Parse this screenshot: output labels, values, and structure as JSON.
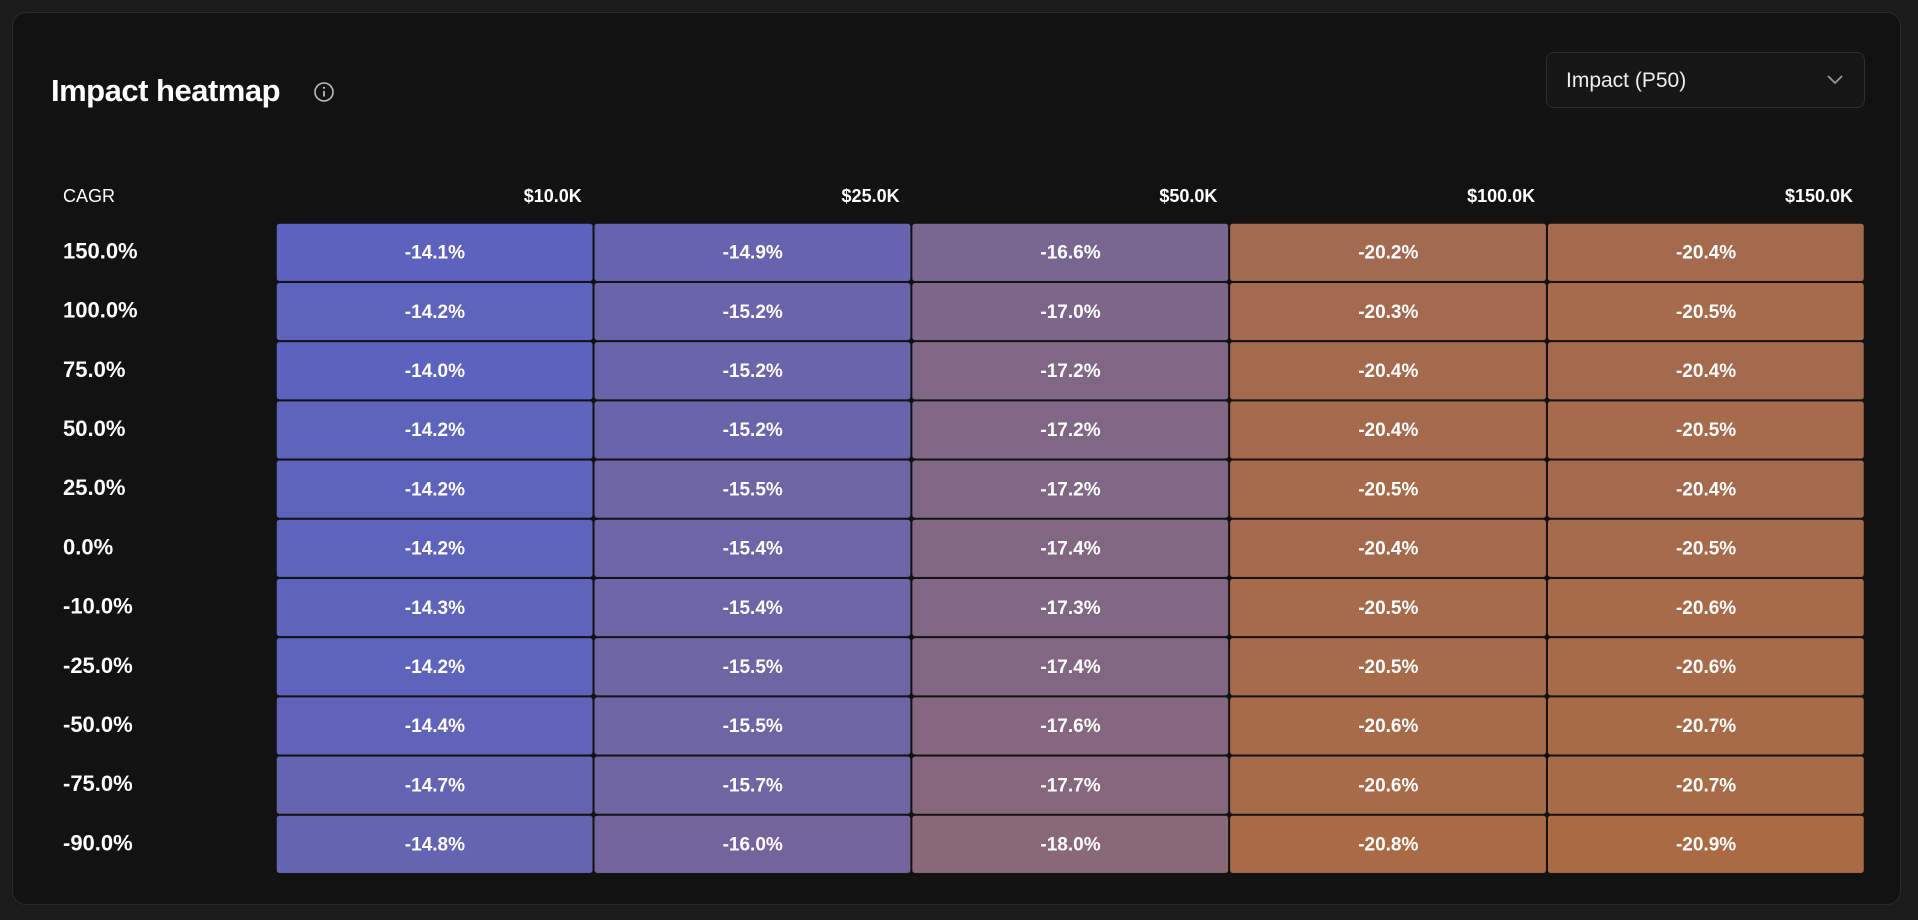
{
  "header": {
    "dropdown": "Impact (P50)"
  },
  "chart_data": {
    "type": "heatmap",
    "title": "Impact heatmap",
    "y_label": "CAGR",
    "x_categories": [
      "$10.0K",
      "$25.0K",
      "$50.0K",
      "$100.0K",
      "$150.0K"
    ],
    "y_categories": [
      "150.0%",
      "100.0%",
      "75.0%",
      "50.0%",
      "25.0%",
      "0.0%",
      "-10.0%",
      "-25.0%",
      "-50.0%",
      "-75.0%",
      "-90.0%"
    ],
    "values": [
      [
        -14.1,
        -14.9,
        -16.6,
        -20.2,
        -20.4
      ],
      [
        -14.2,
        -15.2,
        -17.0,
        -20.3,
        -20.5
      ],
      [
        -14.0,
        -15.2,
        -17.2,
        -20.4,
        -20.4
      ],
      [
        -14.2,
        -15.2,
        -17.2,
        -20.4,
        -20.5
      ],
      [
        -14.2,
        -15.5,
        -17.2,
        -20.5,
        -20.4
      ],
      [
        -14.2,
        -15.4,
        -17.4,
        -20.4,
        -20.5
      ],
      [
        -14.3,
        -15.4,
        -17.3,
        -20.5,
        -20.6
      ],
      [
        -14.2,
        -15.5,
        -17.4,
        -20.5,
        -20.6
      ],
      [
        -14.4,
        -15.5,
        -17.6,
        -20.6,
        -20.7
      ],
      [
        -14.7,
        -15.7,
        -17.7,
        -20.6,
        -20.7
      ],
      [
        -14.8,
        -16.0,
        -18.0,
        -20.8,
        -20.9
      ]
    ],
    "value_labels": [
      [
        "-14.1%",
        "-14.9%",
        "-16.6%",
        "-20.2%",
        "-20.4%"
      ],
      [
        "-14.2%",
        "-15.2%",
        "-17.0%",
        "-20.3%",
        "-20.5%"
      ],
      [
        "-14.0%",
        "-15.2%",
        "-17.2%",
        "-20.4%",
        "-20.4%"
      ],
      [
        "-14.2%",
        "-15.2%",
        "-17.2%",
        "-20.4%",
        "-20.5%"
      ],
      [
        "-14.2%",
        "-15.5%",
        "-17.2%",
        "-20.5%",
        "-20.4%"
      ],
      [
        "-14.2%",
        "-15.4%",
        "-17.4%",
        "-20.4%",
        "-20.5%"
      ],
      [
        "-14.3%",
        "-15.4%",
        "-17.3%",
        "-20.5%",
        "-20.6%"
      ],
      [
        "-14.2%",
        "-15.5%",
        "-17.4%",
        "-20.5%",
        "-20.6%"
      ],
      [
        "-14.4%",
        "-15.5%",
        "-17.6%",
        "-20.6%",
        "-20.7%"
      ],
      [
        "-14.7%",
        "-15.7%",
        "-17.7%",
        "-20.6%",
        "-20.7%"
      ],
      [
        "-14.8%",
        "-16.0%",
        "-18.0%",
        "-20.8%",
        "-20.9%"
      ]
    ],
    "high_color": "#5c63bf",
    "low_color": "#aa6b44"
  }
}
